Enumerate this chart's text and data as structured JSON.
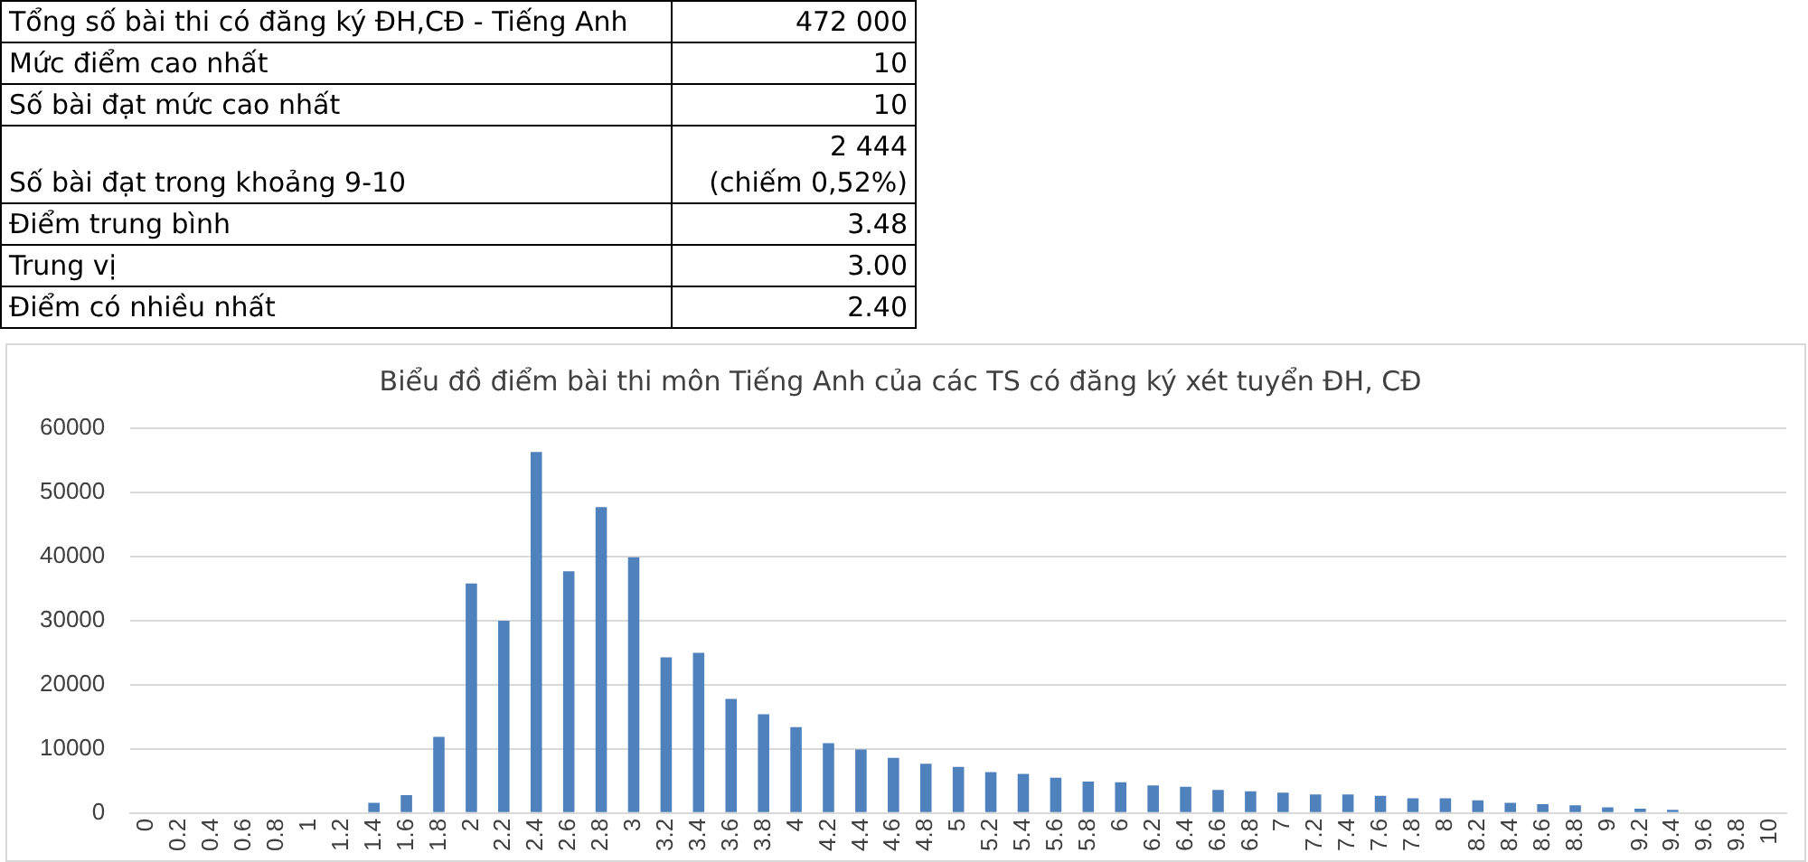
{
  "chart_data": [
    {
      "type": "other",
      "annotations": [
        "Tổng số bài thi có đăng ký ĐH,CĐ - Tiếng Anh",
        "472 000",
        "Mức điểm cao nhất",
        "10",
        "Số bài đạt mức cao nhất",
        "10",
        "Số bài đạt trong khoảng 9-10",
        "2 444\n(chiếm  0,52%)",
        "Điểm trung bình",
        "3.48",
        "Trung vị",
        "3.00",
        "Điểm có nhiều nhất",
        "2.40"
      ]
    },
    {
      "type": "bar",
      "title": "Biểu đồ điểm bài thi môn Tiếng Anh của các TS có đăng ký xét tuyển ĐH, CĐ",
      "categories": [
        "0",
        "0.2",
        "0.4",
        "0.6",
        "0.8",
        "1",
        "1.2",
        "1.4",
        "1.6",
        "1.8",
        "2",
        "2.2",
        "2.4",
        "2.6",
        "2.8",
        "3",
        "3.2",
        "3.4",
        "3.6",
        "3.8",
        "4",
        "4.2",
        "4.4",
        "4.6",
        "4.8",
        "5",
        "5.2",
        "5.4",
        "5.6",
        "5.8",
        "6",
        "6.2",
        "6.4",
        "6.6",
        "6.8",
        "7",
        "7.2",
        "7.4",
        "7.6",
        "7.8",
        "8",
        "8.2",
        "8.4",
        "8.6",
        "8.8",
        "9",
        "9.2",
        "9.4",
        "9.6",
        "9.8",
        "10"
      ],
      "values": [
        0,
        0,
        0,
        0,
        0,
        0,
        0,
        1600,
        2800,
        11900,
        35800,
        30000,
        56300,
        37700,
        47700,
        39900,
        24300,
        25000,
        17800,
        15400,
        13400,
        10900,
        9900,
        8600,
        7700,
        7200,
        6400,
        6100,
        5500,
        4900,
        4800,
        4300,
        4100,
        3600,
        3400,
        3200,
        2900,
        2900,
        2700,
        2300,
        2300,
        2000,
        1600,
        1400,
        1200,
        900,
        700,
        500,
        0,
        0,
        0
      ],
      "color": "#4f81bd",
      "ylim": [
        0,
        60000
      ],
      "yticks": [
        0,
        10000,
        20000,
        30000,
        40000,
        50000,
        60000
      ],
      "grid": "y"
    }
  ]
}
